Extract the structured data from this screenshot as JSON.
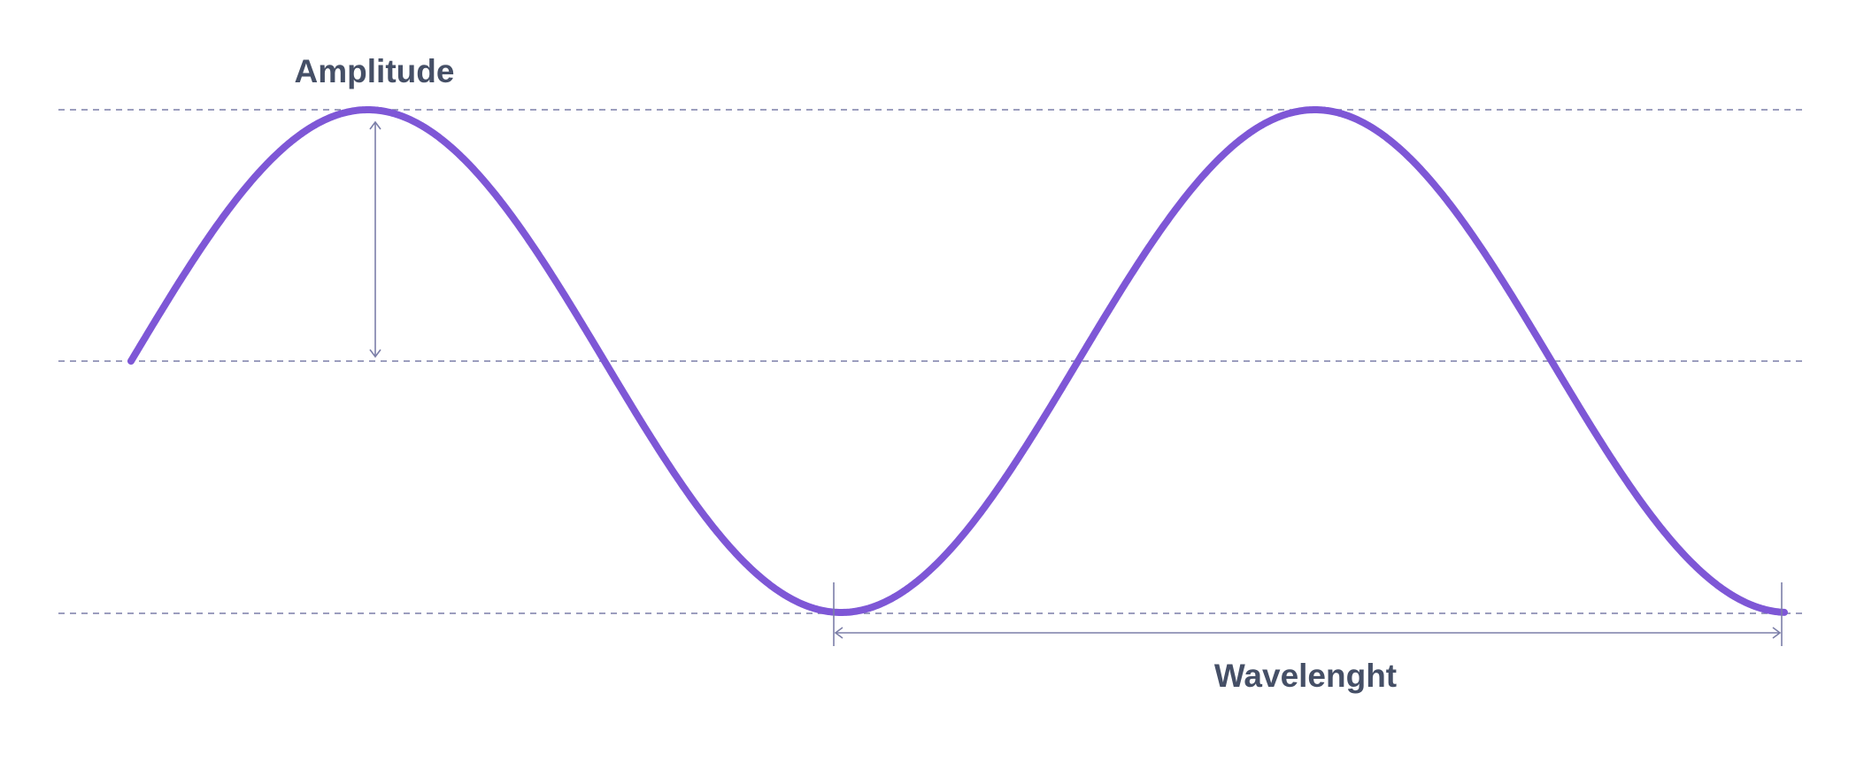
{
  "labels": {
    "amplitude": "Amplitude",
    "wavelength": "Wavelenght"
  },
  "colors": {
    "wave": "#7e57d6",
    "guide": "#7c7fa8",
    "text": "#454f66",
    "background": "#ffffff"
  }
}
